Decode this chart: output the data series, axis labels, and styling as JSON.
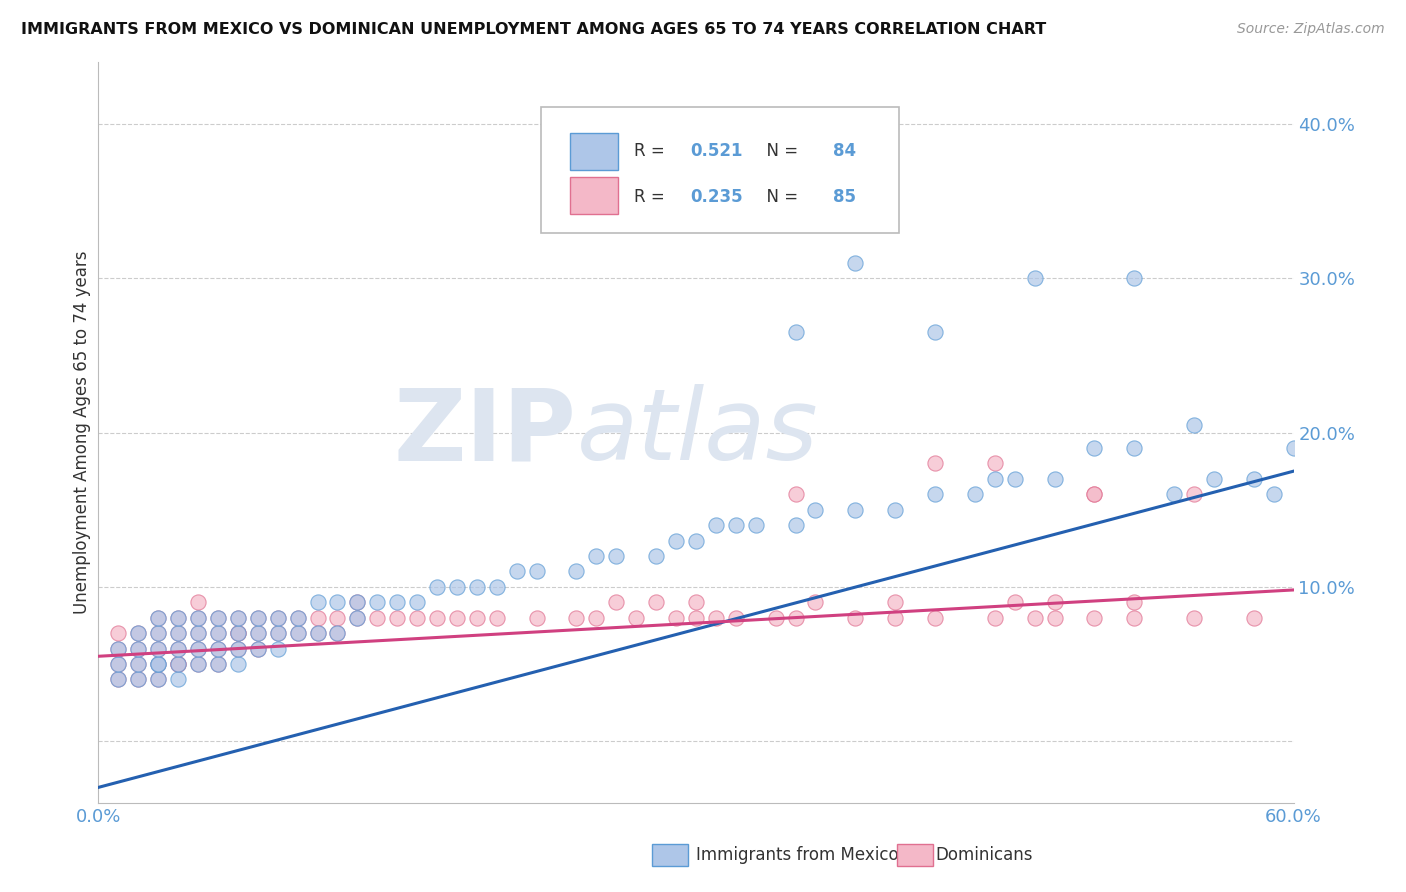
{
  "title": "IMMIGRANTS FROM MEXICO VS DOMINICAN UNEMPLOYMENT AMONG AGES 65 TO 74 YEARS CORRELATION CHART",
  "source": "Source: ZipAtlas.com",
  "ylabel": "Unemployment Among Ages 65 to 74 years",
  "xlim": [
    0.0,
    0.6
  ],
  "ylim": [
    -0.04,
    0.44
  ],
  "ytick_values": [
    0.0,
    0.1,
    0.2,
    0.3,
    0.4
  ],
  "ytick_labels": [
    "",
    "10.0%",
    "20.0%",
    "30.0%",
    "40.0%"
  ],
  "xtick_values": [
    0.0,
    0.1,
    0.2,
    0.3,
    0.4,
    0.5,
    0.6
  ],
  "xtick_labels": [
    "0.0%",
    "",
    "",
    "",
    "",
    "",
    "60.0%"
  ],
  "legend1_r": "0.521",
  "legend1_n": "84",
  "legend2_r": "0.235",
  "legend2_n": "85",
  "color_blue_fill": "#aec6e8",
  "color_blue_edge": "#5b9bd5",
  "color_pink_fill": "#f4b8c8",
  "color_pink_edge": "#e07090",
  "color_trendline_blue": "#2460b0",
  "color_trendline_pink": "#d04080",
  "background": "#ffffff",
  "watermark_color": "#dde5f0",
  "grid_color": "#cccccc",
  "tick_color": "#5b9bd5",
  "title_color": "#111111",
  "source_color": "#999999",
  "ylabel_color": "#333333",
  "blue_x": [
    0.01,
    0.01,
    0.01,
    0.02,
    0.02,
    0.02,
    0.02,
    0.03,
    0.03,
    0.03,
    0.03,
    0.03,
    0.03,
    0.04,
    0.04,
    0.04,
    0.04,
    0.04,
    0.05,
    0.05,
    0.05,
    0.05,
    0.06,
    0.06,
    0.06,
    0.06,
    0.07,
    0.07,
    0.07,
    0.07,
    0.08,
    0.08,
    0.08,
    0.09,
    0.09,
    0.09,
    0.1,
    0.1,
    0.11,
    0.11,
    0.12,
    0.12,
    0.13,
    0.13,
    0.14,
    0.15,
    0.16,
    0.17,
    0.18,
    0.19,
    0.2,
    0.21,
    0.22,
    0.24,
    0.25,
    0.26,
    0.28,
    0.29,
    0.3,
    0.31,
    0.32,
    0.33,
    0.35,
    0.36,
    0.38,
    0.4,
    0.42,
    0.44,
    0.45,
    0.46,
    0.48,
    0.5,
    0.52,
    0.54,
    0.56,
    0.58,
    0.59,
    0.6,
    0.47,
    0.38,
    0.52,
    0.35,
    0.42,
    0.55
  ],
  "blue_y": [
    0.04,
    0.05,
    0.06,
    0.04,
    0.05,
    0.06,
    0.07,
    0.04,
    0.05,
    0.05,
    0.06,
    0.07,
    0.08,
    0.04,
    0.05,
    0.06,
    0.07,
    0.08,
    0.05,
    0.06,
    0.07,
    0.08,
    0.05,
    0.06,
    0.07,
    0.08,
    0.05,
    0.06,
    0.07,
    0.08,
    0.06,
    0.07,
    0.08,
    0.06,
    0.07,
    0.08,
    0.07,
    0.08,
    0.07,
    0.09,
    0.07,
    0.09,
    0.08,
    0.09,
    0.09,
    0.09,
    0.09,
    0.1,
    0.1,
    0.1,
    0.1,
    0.11,
    0.11,
    0.11,
    0.12,
    0.12,
    0.12,
    0.13,
    0.13,
    0.14,
    0.14,
    0.14,
    0.14,
    0.15,
    0.15,
    0.15,
    0.16,
    0.16,
    0.17,
    0.17,
    0.17,
    0.19,
    0.19,
    0.16,
    0.17,
    0.17,
    0.16,
    0.19,
    0.3,
    0.31,
    0.3,
    0.265,
    0.265,
    0.205
  ],
  "pink_x": [
    0.01,
    0.01,
    0.01,
    0.01,
    0.02,
    0.02,
    0.02,
    0.02,
    0.03,
    0.03,
    0.03,
    0.03,
    0.03,
    0.04,
    0.04,
    0.04,
    0.04,
    0.04,
    0.05,
    0.05,
    0.05,
    0.05,
    0.05,
    0.06,
    0.06,
    0.06,
    0.06,
    0.07,
    0.07,
    0.07,
    0.07,
    0.08,
    0.08,
    0.08,
    0.09,
    0.09,
    0.1,
    0.1,
    0.11,
    0.11,
    0.12,
    0.12,
    0.13,
    0.13,
    0.14,
    0.15,
    0.16,
    0.17,
    0.18,
    0.19,
    0.2,
    0.22,
    0.24,
    0.25,
    0.27,
    0.29,
    0.3,
    0.31,
    0.32,
    0.34,
    0.35,
    0.38,
    0.4,
    0.42,
    0.45,
    0.47,
    0.48,
    0.5,
    0.52,
    0.55,
    0.58,
    0.42,
    0.45,
    0.35,
    0.3,
    0.5,
    0.4,
    0.36,
    0.28,
    0.26,
    0.48,
    0.46,
    0.52,
    0.55,
    0.5
  ],
  "pink_y": [
    0.04,
    0.05,
    0.06,
    0.07,
    0.04,
    0.05,
    0.06,
    0.07,
    0.04,
    0.05,
    0.06,
    0.07,
    0.08,
    0.05,
    0.05,
    0.06,
    0.07,
    0.08,
    0.05,
    0.06,
    0.07,
    0.08,
    0.09,
    0.05,
    0.06,
    0.07,
    0.08,
    0.06,
    0.07,
    0.07,
    0.08,
    0.06,
    0.07,
    0.08,
    0.07,
    0.08,
    0.07,
    0.08,
    0.07,
    0.08,
    0.07,
    0.08,
    0.08,
    0.09,
    0.08,
    0.08,
    0.08,
    0.08,
    0.08,
    0.08,
    0.08,
    0.08,
    0.08,
    0.08,
    0.08,
    0.08,
    0.08,
    0.08,
    0.08,
    0.08,
    0.08,
    0.08,
    0.08,
    0.08,
    0.08,
    0.08,
    0.08,
    0.08,
    0.08,
    0.08,
    0.08,
    0.18,
    0.18,
    0.16,
    0.09,
    0.16,
    0.09,
    0.09,
    0.09,
    0.09,
    0.09,
    0.09,
    0.09,
    0.16,
    0.16
  ],
  "blue_trendline_x0": 0.0,
  "blue_trendline_y0": -0.03,
  "blue_trendline_x1": 0.6,
  "blue_trendline_y1": 0.175,
  "pink_trendline_x0": 0.0,
  "pink_trendline_y0": 0.055,
  "pink_trendline_x1": 0.6,
  "pink_trendline_y1": 0.098
}
